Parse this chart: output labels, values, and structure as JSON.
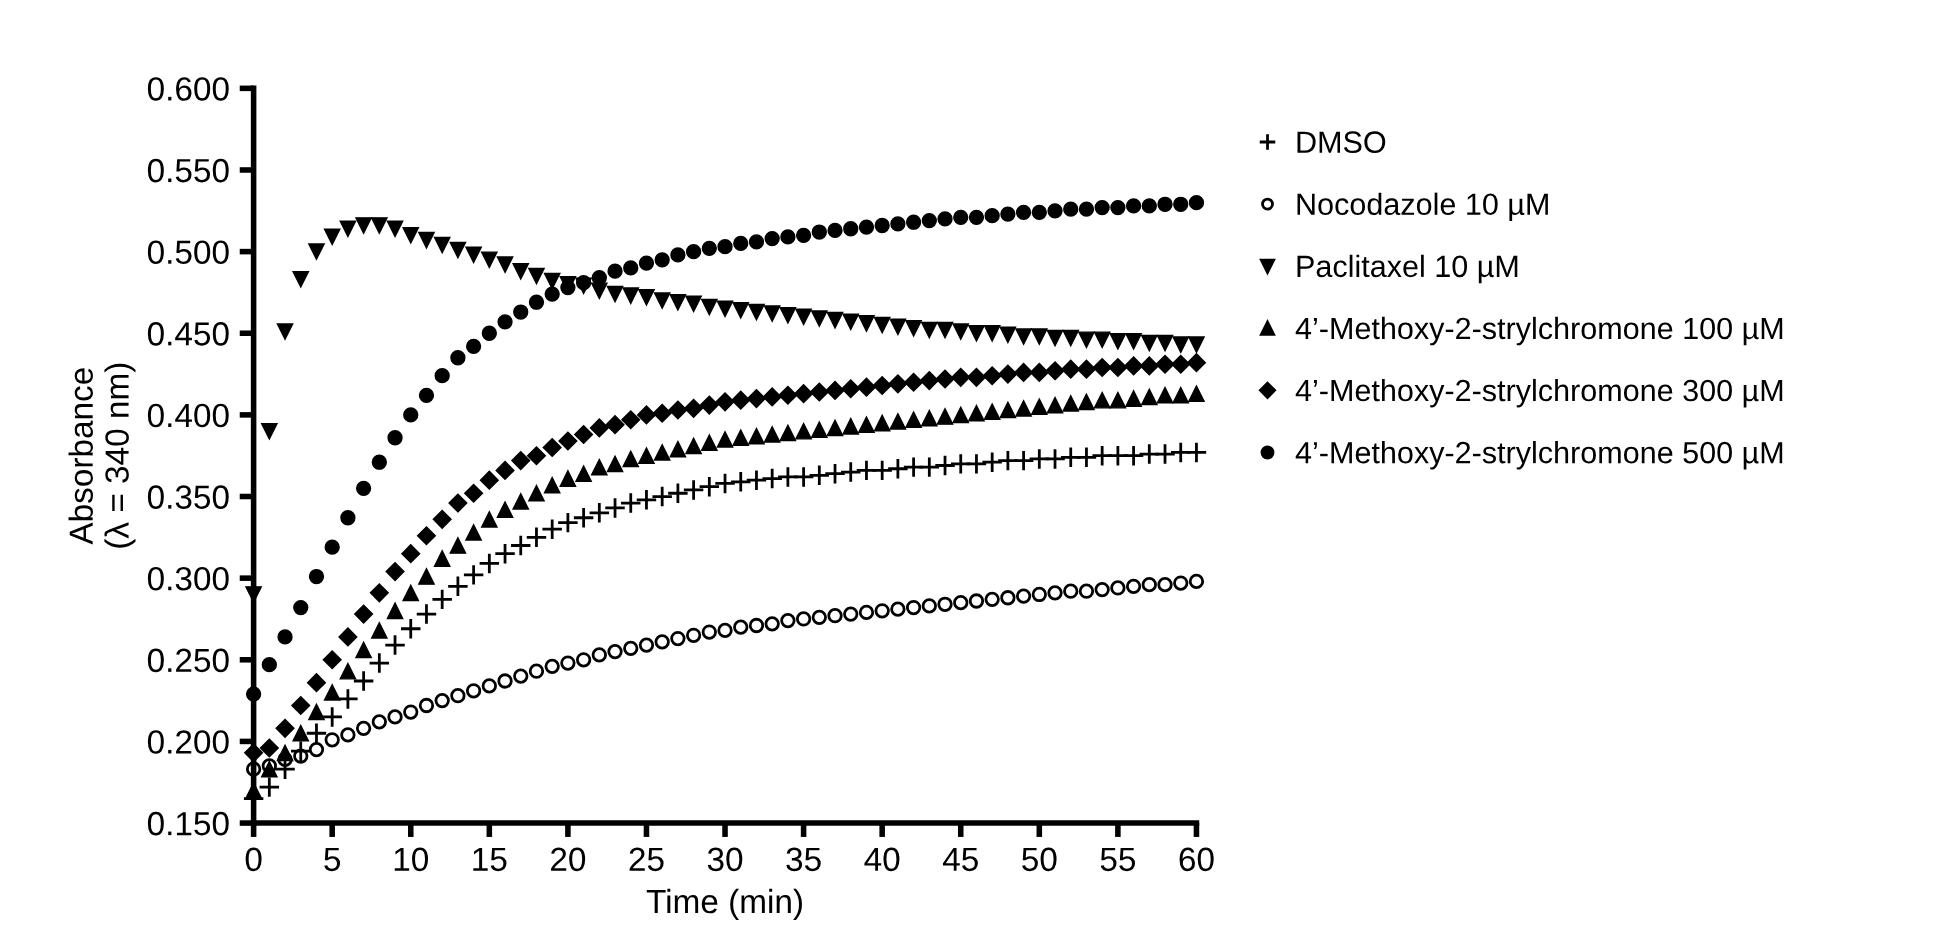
{
  "chart_data": {
    "type": "scatter",
    "xlabel": "Time (min)",
    "ylabel": "Absorbance\n(λ = 340 nm)",
    "x": [
      0,
      1,
      2,
      3,
      4,
      5,
      6,
      7,
      8,
      9,
      10,
      11,
      12,
      13,
      14,
      15,
      16,
      17,
      18,
      19,
      20,
      21,
      22,
      23,
      24,
      25,
      26,
      27,
      28,
      29,
      30,
      31,
      32,
      33,
      34,
      35,
      36,
      37,
      38,
      39,
      40,
      41,
      42,
      43,
      44,
      45,
      46,
      47,
      48,
      49,
      50,
      51,
      52,
      53,
      54,
      55,
      56,
      57,
      58,
      59,
      60
    ],
    "xlim": [
      0,
      60
    ],
    "xticks": [
      0,
      5,
      10,
      15,
      20,
      25,
      30,
      35,
      40,
      45,
      50,
      55,
      60
    ],
    "ylim": [
      0.15,
      0.6
    ],
    "yticks": [
      {
        "value": 0.15,
        "label": "0.150"
      },
      {
        "value": 0.2,
        "label": "0.200"
      },
      {
        "value": 0.25,
        "label": "0.250"
      },
      {
        "value": 0.3,
        "label": "0.300"
      },
      {
        "value": 0.35,
        "label": "0.350"
      },
      {
        "value": 0.4,
        "label": "0.400"
      },
      {
        "value": 0.45,
        "label": "0.450"
      },
      {
        "value": 0.5,
        "label": "0.500"
      },
      {
        "value": 0.55,
        "label": "0.550"
      },
      {
        "value": 0.6,
        "label": "0.600"
      }
    ],
    "grid": false,
    "legend": "right",
    "series": [
      {
        "name": "DMSO",
        "color": "#000000",
        "marker": "cross",
        "values": [
          0.165,
          0.172,
          0.183,
          0.194,
          0.205,
          0.215,
          0.226,
          0.237,
          0.248,
          0.259,
          0.269,
          0.278,
          0.287,
          0.295,
          0.302,
          0.309,
          0.315,
          0.32,
          0.325,
          0.33,
          0.334,
          0.337,
          0.34,
          0.343,
          0.346,
          0.348,
          0.35,
          0.352,
          0.354,
          0.356,
          0.358,
          0.359,
          0.36,
          0.361,
          0.362,
          0.362,
          0.363,
          0.364,
          0.365,
          0.366,
          0.366,
          0.367,
          0.368,
          0.368,
          0.369,
          0.37,
          0.37,
          0.371,
          0.372,
          0.372,
          0.373,
          0.373,
          0.374,
          0.374,
          0.375,
          0.375,
          0.375,
          0.376,
          0.376,
          0.377,
          0.377
        ]
      },
      {
        "name": "Nocodazole 10 µM",
        "color": "#000000",
        "marker": "circle_open",
        "values": [
          0.183,
          0.185,
          0.189,
          0.191,
          0.195,
          0.201,
          0.204,
          0.208,
          0.212,
          0.215,
          0.218,
          0.222,
          0.225,
          0.228,
          0.231,
          0.234,
          0.237,
          0.24,
          0.243,
          0.246,
          0.248,
          0.25,
          0.253,
          0.255,
          0.257,
          0.259,
          0.261,
          0.263,
          0.265,
          0.267,
          0.268,
          0.27,
          0.271,
          0.272,
          0.274,
          0.275,
          0.276,
          0.277,
          0.278,
          0.279,
          0.28,
          0.281,
          0.282,
          0.283,
          0.284,
          0.285,
          0.286,
          0.287,
          0.288,
          0.289,
          0.29,
          0.291,
          0.292,
          0.292,
          0.293,
          0.294,
          0.295,
          0.296,
          0.296,
          0.297,
          0.298
        ]
      },
      {
        "name": "Paclitaxel 10 µM",
        "color": "#000000",
        "marker": "triangle_down",
        "values": [
          0.29,
          0.39,
          0.451,
          0.483,
          0.5,
          0.509,
          0.514,
          0.516,
          0.516,
          0.514,
          0.51,
          0.507,
          0.504,
          0.501,
          0.498,
          0.495,
          0.492,
          0.488,
          0.485,
          0.482,
          0.48,
          0.479,
          0.476,
          0.474,
          0.473,
          0.472,
          0.47,
          0.469,
          0.468,
          0.466,
          0.465,
          0.464,
          0.463,
          0.462,
          0.461,
          0.46,
          0.459,
          0.458,
          0.457,
          0.456,
          0.455,
          0.454,
          0.453,
          0.452,
          0.452,
          0.451,
          0.45,
          0.45,
          0.449,
          0.448,
          0.448,
          0.447,
          0.447,
          0.446,
          0.446,
          0.445,
          0.445,
          0.444,
          0.444,
          0.443,
          0.443
        ]
      },
      {
        "name": "4’-Methoxy-2-strylchromone 100 µM",
        "color": "#000000",
        "marker": "triangle",
        "values": [
          0.17,
          0.183,
          0.193,
          0.205,
          0.218,
          0.23,
          0.243,
          0.256,
          0.268,
          0.28,
          0.291,
          0.301,
          0.312,
          0.32,
          0.328,
          0.336,
          0.342,
          0.347,
          0.352,
          0.357,
          0.361,
          0.364,
          0.368,
          0.37,
          0.373,
          0.375,
          0.377,
          0.379,
          0.381,
          0.383,
          0.385,
          0.386,
          0.387,
          0.388,
          0.389,
          0.39,
          0.391,
          0.392,
          0.393,
          0.394,
          0.395,
          0.396,
          0.397,
          0.398,
          0.399,
          0.4,
          0.401,
          0.402,
          0.403,
          0.404,
          0.405,
          0.406,
          0.407,
          0.408,
          0.409,
          0.409,
          0.41,
          0.411,
          0.412,
          0.412,
          0.413
        ]
      },
      {
        "name": "4’-Methoxy-2-strylchromone 300 µM",
        "color": "#000000",
        "marker": "diamond",
        "values": [
          0.193,
          0.196,
          0.208,
          0.222,
          0.236,
          0.25,
          0.264,
          0.278,
          0.291,
          0.304,
          0.315,
          0.326,
          0.336,
          0.346,
          0.352,
          0.36,
          0.366,
          0.372,
          0.375,
          0.38,
          0.384,
          0.388,
          0.392,
          0.394,
          0.397,
          0.4,
          0.401,
          0.403,
          0.404,
          0.406,
          0.408,
          0.409,
          0.41,
          0.411,
          0.412,
          0.413,
          0.414,
          0.415,
          0.416,
          0.417,
          0.418,
          0.419,
          0.42,
          0.421,
          0.422,
          0.423,
          0.423,
          0.424,
          0.425,
          0.426,
          0.426,
          0.427,
          0.428,
          0.428,
          0.429,
          0.429,
          0.43,
          0.43,
          0.431,
          0.431,
          0.432
        ]
      },
      {
        "name": "4’-Methoxy-2-strylchromone 500 µM",
        "color": "#000000",
        "marker": "circle",
        "values": [
          0.229,
          0.247,
          0.264,
          0.282,
          0.301,
          0.319,
          0.337,
          0.355,
          0.371,
          0.386,
          0.4,
          0.412,
          0.424,
          0.435,
          0.442,
          0.45,
          0.457,
          0.463,
          0.469,
          0.474,
          0.478,
          0.481,
          0.484,
          0.488,
          0.49,
          0.493,
          0.495,
          0.498,
          0.5,
          0.502,
          0.503,
          0.505,
          0.506,
          0.508,
          0.509,
          0.51,
          0.512,
          0.513,
          0.514,
          0.515,
          0.516,
          0.517,
          0.518,
          0.519,
          0.52,
          0.521,
          0.521,
          0.522,
          0.523,
          0.524,
          0.524,
          0.525,
          0.526,
          0.526,
          0.527,
          0.527,
          0.528,
          0.528,
          0.529,
          0.529,
          0.53
        ]
      }
    ]
  }
}
